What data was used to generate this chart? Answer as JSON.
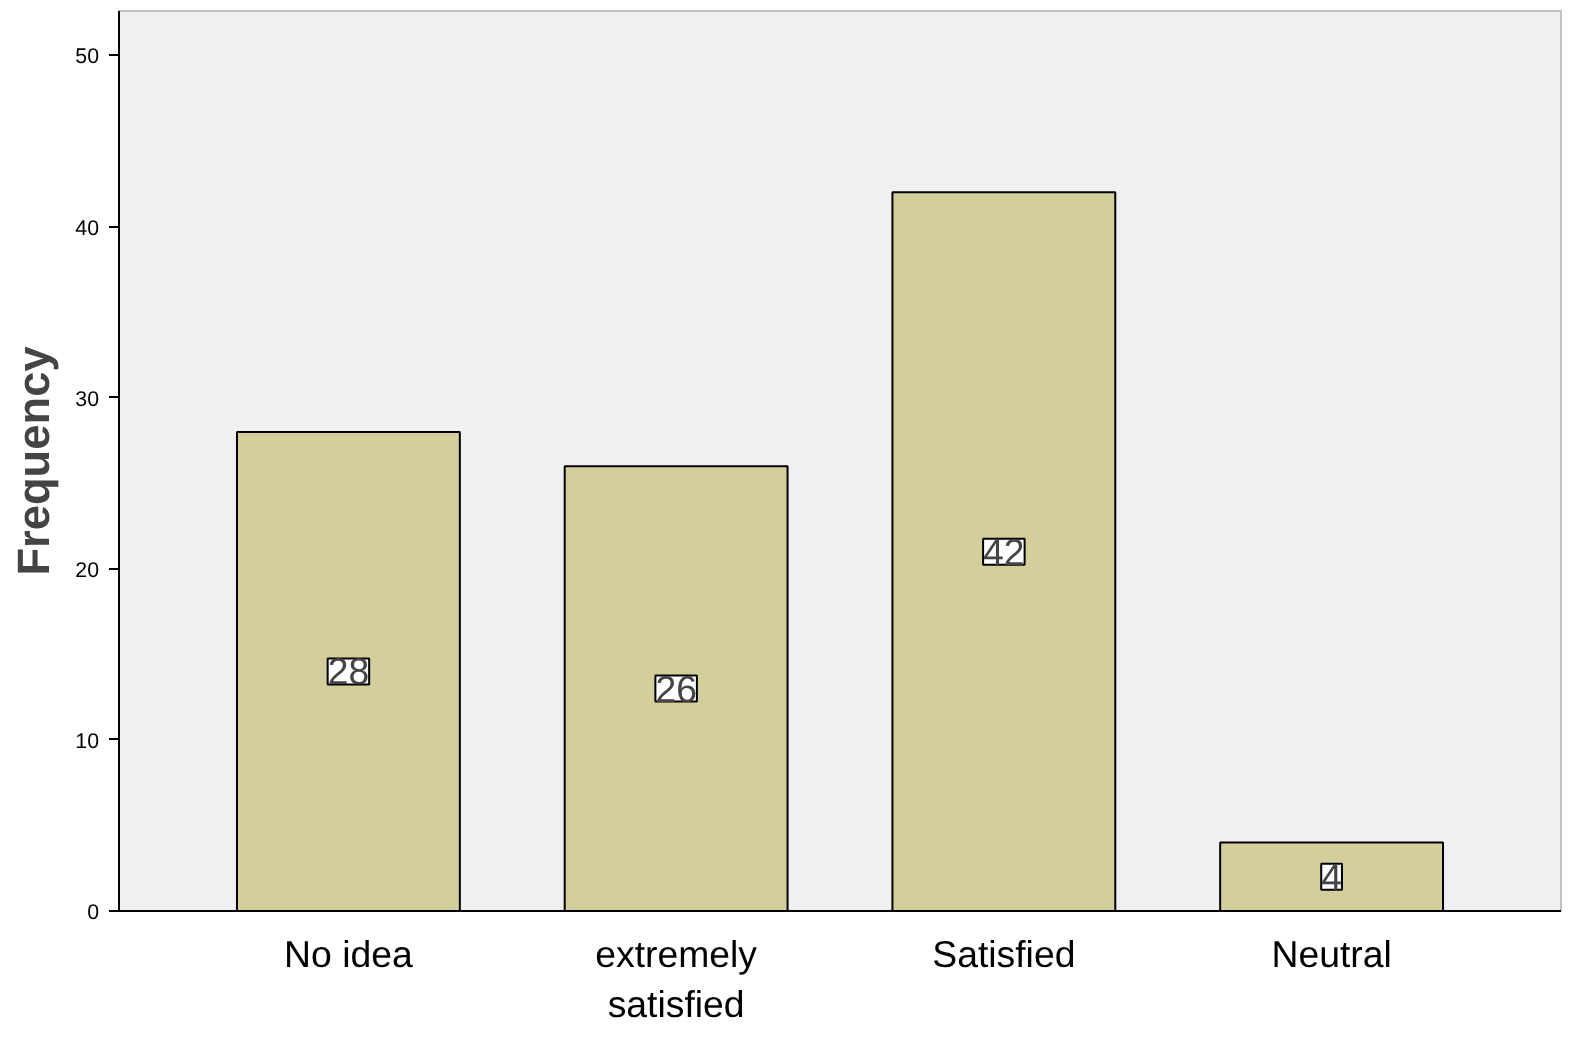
{
  "chart_data": {
    "type": "bar",
    "ylabel": "Frequency",
    "categories": [
      "No idea",
      "extremely satisfied",
      "Satisfied",
      "Neutral"
    ],
    "values": [
      28,
      26,
      42,
      4
    ],
    "color": "#d3ce9a",
    "ylim": [
      0,
      52.6
    ],
    "yticks": [
      0,
      10,
      20,
      30,
      40,
      50
    ],
    "data_labels": true,
    "grid": false
  }
}
